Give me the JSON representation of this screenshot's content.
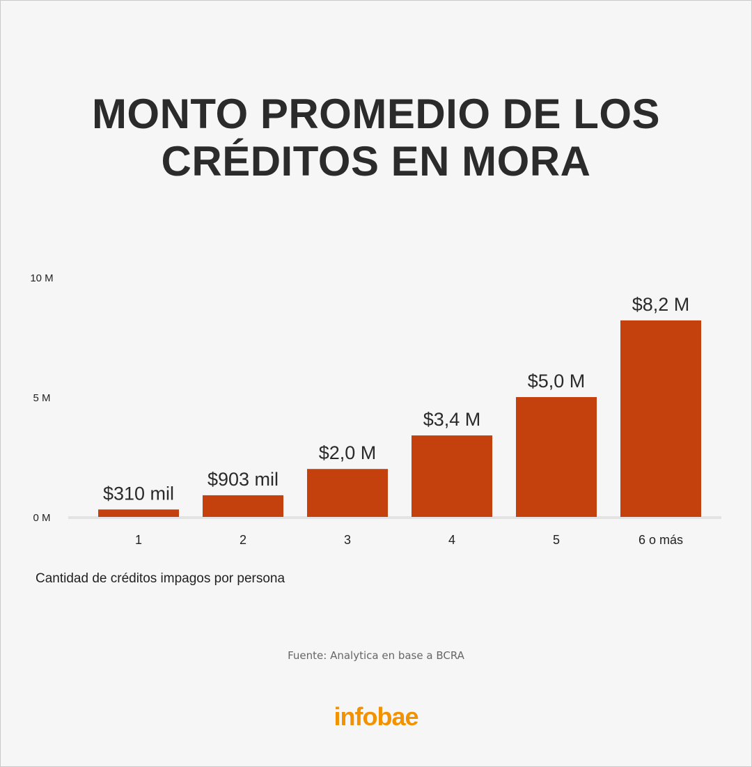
{
  "title": {
    "line1": "MONTO PROMEDIO DE LOS",
    "line2": "CRÉDITOS EN MORA"
  },
  "chart_data": {
    "type": "bar",
    "categories": [
      "1",
      "2",
      "3",
      "4",
      "5",
      "6 o más"
    ],
    "values": [
      0.31,
      0.903,
      2.0,
      3.4,
      5.0,
      8.2
    ],
    "data_labels": [
      "$310 mil",
      "$903 mil",
      "$2,0 M",
      "$3,4 M",
      "$5,0 M",
      "$8,2 M"
    ],
    "yticks": [
      0,
      5,
      10
    ],
    "ytick_labels": [
      "0 M",
      "5 M",
      "10 M"
    ],
    "ylim": [
      0,
      10
    ],
    "xlabel": "Cantidad de créditos impagos por persona",
    "ylabel": "",
    "grid": false,
    "bar_color": "#c4410e",
    "baseline_color": "#e3e3e3"
  },
  "source": "Fuente: Analytica en base a BCRA",
  "logo": "infobae",
  "colors": {
    "logo": "#f39200",
    "background": "#f6f6f6",
    "title": "#2b2b2b"
  }
}
